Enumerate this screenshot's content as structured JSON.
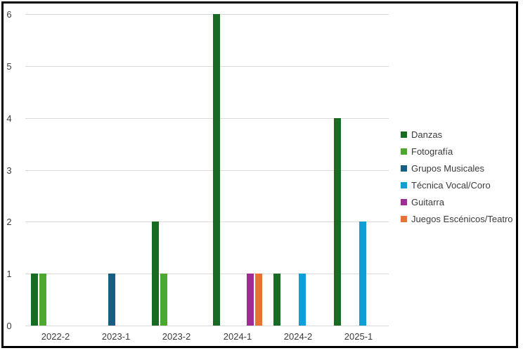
{
  "chart_data": {
    "type": "bar",
    "title": "",
    "categories": [
      "2022-2",
      "2023-1",
      "2023-2",
      "2024-1",
      "2024-2",
      "2025-1"
    ],
    "series": [
      {
        "name": "Danzas",
        "color": "#196B24",
        "values": [
          1,
          0,
          2,
          6,
          1,
          4
        ]
      },
      {
        "name": "Fotografía",
        "color": "#4EA72E",
        "values": [
          1,
          0,
          1,
          0,
          0,
          0
        ]
      },
      {
        "name": "Grupos Musicales",
        "color": "#156082",
        "values": [
          0,
          1,
          0,
          0,
          0,
          0
        ]
      },
      {
        "name": "Técnica Vocal/Coro",
        "color": "#0F9ED5",
        "values": [
          0,
          0,
          0,
          0,
          1,
          2
        ]
      },
      {
        "name": "Guitarra",
        "color": "#A02B93",
        "values": [
          0,
          0,
          0,
          1,
          0,
          0
        ]
      },
      {
        "name": "Juegos Escénicos/Teatro",
        "color": "#E97132",
        "values": [
          0,
          0,
          0,
          1,
          0,
          0
        ]
      }
    ],
    "xlabel": "",
    "ylabel": "",
    "ylim": [
      0,
      6
    ],
    "yticks": [
      0,
      1,
      2,
      3,
      4,
      5,
      6
    ],
    "grid": true,
    "gridline_color": "#D9D9D9",
    "axis_text_color": "#3B3B3B",
    "legend_position": "right",
    "background_color": "#FFFFFF",
    "border_color": "#000000"
  }
}
